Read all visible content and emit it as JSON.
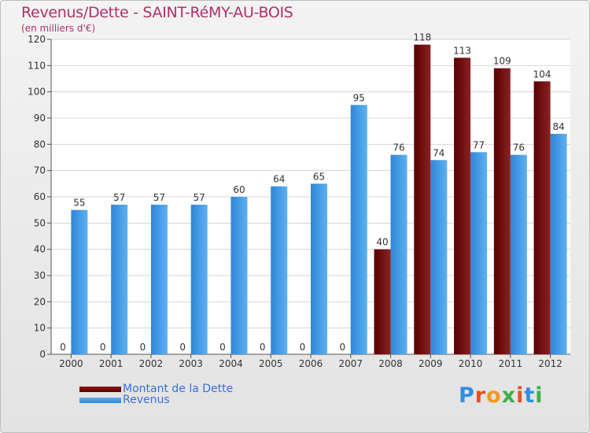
{
  "chart_data": {
    "type": "bar",
    "title": "Revenus/Dette - SAINT-RéMY-AU-BOIS",
    "subtitle": "(en milliers d'€)",
    "categories": [
      "2000",
      "2001",
      "2002",
      "2003",
      "2004",
      "2005",
      "2006",
      "2007",
      "2008",
      "2009",
      "2010",
      "2011",
      "2012"
    ],
    "series": [
      {
        "name": "Montant de la Dette",
        "color": "#6e0a0a",
        "values": [
          0,
          0,
          0,
          0,
          0,
          0,
          0,
          0,
          40,
          118,
          113,
          109,
          104
        ]
      },
      {
        "name": "Revenus",
        "color": "#3a8fdc",
        "values": [
          55,
          57,
          57,
          57,
          60,
          64,
          65,
          95,
          76,
          74,
          77,
          76,
          84
        ]
      }
    ],
    "ylim": [
      0,
      120
    ],
    "yticks": [
      0,
      10,
      20,
      30,
      40,
      50,
      60,
      70,
      80,
      90,
      100,
      110,
      120
    ],
    "grid": true,
    "legend_position": "bottom-left"
  },
  "brand": {
    "letters": [
      {
        "char": "P",
        "color": "#2f8fe0"
      },
      {
        "char": "r",
        "color": "#e5502a"
      },
      {
        "char": "o",
        "color": "#f29a1d"
      },
      {
        "char": "x",
        "color": "#3fae49"
      },
      {
        "char": "i",
        "color": "#e5502a"
      },
      {
        "char": "t",
        "color": "#2f8fe0"
      },
      {
        "char": "i",
        "color": "#3fae49"
      }
    ]
  }
}
